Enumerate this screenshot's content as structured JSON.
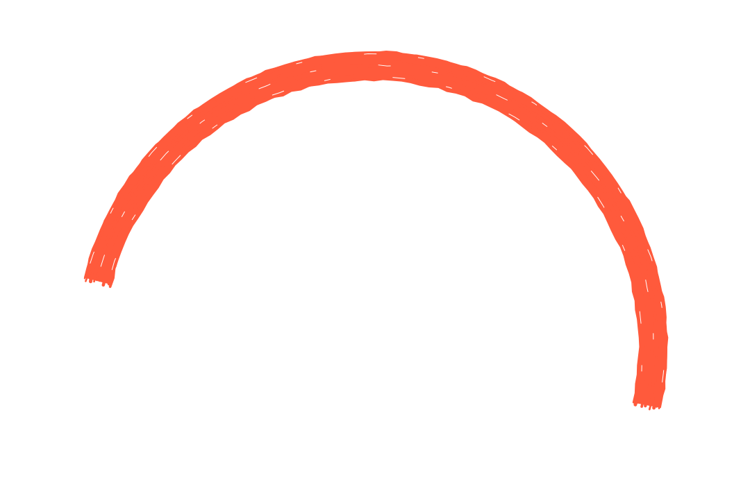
{
  "shape": {
    "type": "hand-drawn-arc",
    "style": "rough-sketch",
    "colors": {
      "stroke": "#FF5A3C",
      "background": "#FFFFFF"
    }
  }
}
